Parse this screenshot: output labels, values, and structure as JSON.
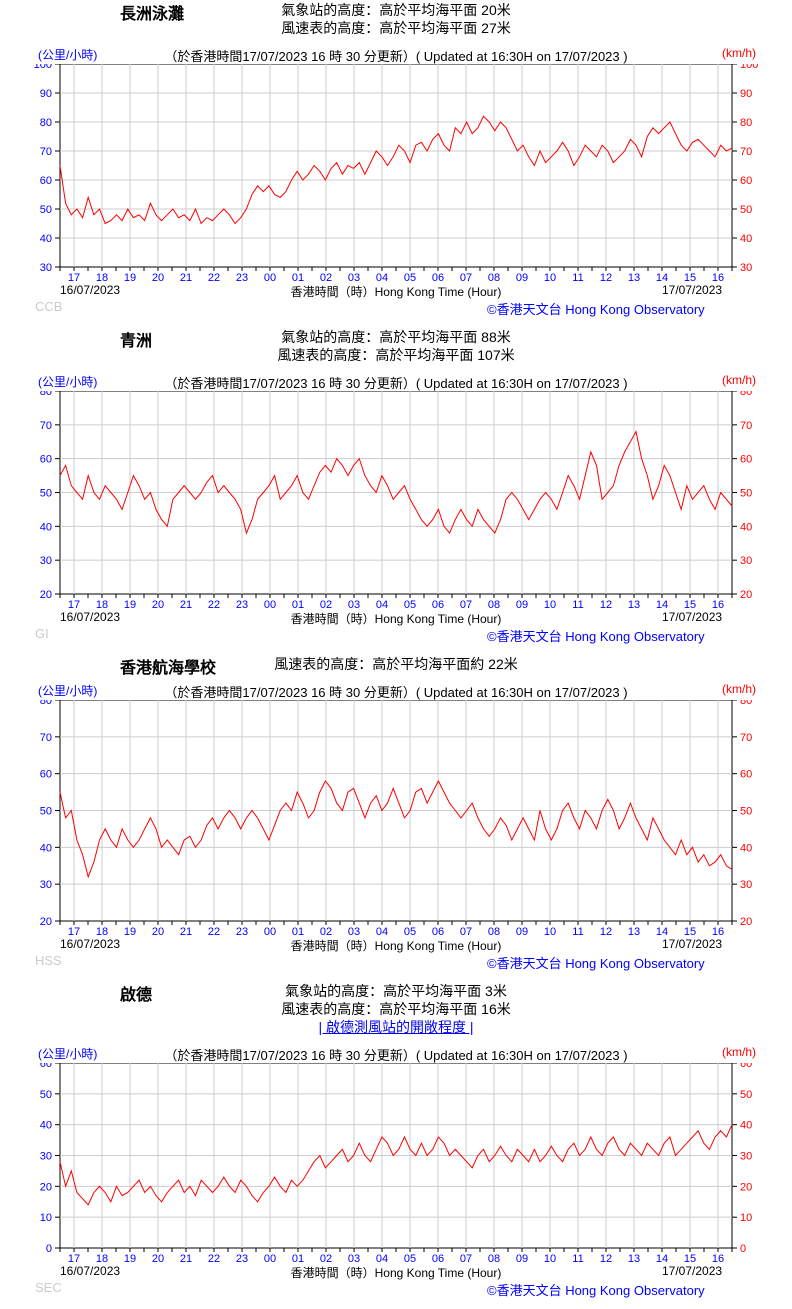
{
  "global": {
    "update_text": "（於香港時間17/07/2023 16 時 30 分更新）( Updated at 16:30H on 17/07/2023 )",
    "xaxis_title": "香港時間（時）Hong Kong Time (Hour)",
    "xaxis_ticks": [
      "17",
      "18",
      "19",
      "20",
      "21",
      "22",
      "23",
      "00",
      "01",
      "02",
      "03",
      "04",
      "05",
      "06",
      "07",
      "08",
      "09",
      "10",
      "11",
      "12",
      "13",
      "14",
      "15",
      "16"
    ],
    "date_start": "16/07/2023",
    "date_end": "17/07/2023",
    "copyright": "©香港天文台 Hong Kong Observatory",
    "unit_left": "(公里/小時)",
    "unit_right": "(km/h)",
    "line_color": "#ff0000",
    "grid_color": "#cccccc",
    "axis_color": "#000000",
    "xtick_color": "#0000ff",
    "left_tick_color": "#0000ff",
    "right_tick_color": "#ff0000",
    "title_fontsize": 16,
    "subtitle_fontsize": 14,
    "update_fontsize": 13,
    "axislabel_fontsize": 12,
    "tick_fontsize": 11,
    "copyright_fontsize": 13,
    "code_fontsize": 13
  },
  "charts": [
    {
      "station_name": "長洲泳灘",
      "station_code": "CCB",
      "subtitles": [
        "氣象站的高度：高於平均海平面 20米",
        "風速表的高度：高於平均海平面 27米"
      ],
      "ylim": [
        30,
        100
      ],
      "ytick_step": 10,
      "series": [
        65,
        52,
        48,
        50,
        47,
        54,
        48,
        50,
        45,
        46,
        48,
        46,
        50,
        47,
        48,
        46,
        52,
        48,
        46,
        48,
        50,
        47,
        48,
        46,
        50,
        45,
        47,
        46,
        48,
        50,
        48,
        45,
        47,
        50,
        55,
        58,
        56,
        58,
        55,
        54,
        56,
        60,
        63,
        60,
        62,
        65,
        63,
        60,
        64,
        66,
        62,
        65,
        64,
        66,
        62,
        66,
        70,
        68,
        65,
        68,
        72,
        70,
        66,
        72,
        73,
        70,
        74,
        76,
        72,
        70,
        78,
        76,
        80,
        76,
        78,
        82,
        80,
        77,
        80,
        78,
        74,
        70,
        72,
        68,
        65,
        70,
        66,
        68,
        70,
        73,
        70,
        65,
        68,
        72,
        70,
        68,
        72,
        70,
        66,
        68,
        70,
        74,
        72,
        68,
        75,
        78,
        76,
        78,
        80,
        76,
        72,
        70,
        73,
        74,
        72,
        70,
        68,
        72,
        70,
        71
      ]
    },
    {
      "station_name": "青洲",
      "station_code": "GI",
      "subtitles": [
        "氣象站的高度：高於平均海平面 88米",
        "風速表的高度：高於平均海平面 107米"
      ],
      "ylim": [
        20,
        80
      ],
      "ytick_step": 10,
      "series": [
        55,
        58,
        52,
        50,
        48,
        55,
        50,
        48,
        52,
        50,
        48,
        45,
        50,
        55,
        52,
        48,
        50,
        45,
        42,
        40,
        48,
        50,
        52,
        50,
        48,
        50,
        53,
        55,
        50,
        52,
        50,
        48,
        45,
        38,
        42,
        48,
        50,
        52,
        55,
        48,
        50,
        52,
        55,
        50,
        48,
        52,
        56,
        58,
        56,
        60,
        58,
        55,
        58,
        60,
        55,
        52,
        50,
        55,
        52,
        48,
        50,
        52,
        48,
        45,
        42,
        40,
        42,
        45,
        40,
        38,
        42,
        45,
        42,
        40,
        45,
        42,
        40,
        38,
        42,
        48,
        50,
        48,
        45,
        42,
        45,
        48,
        50,
        48,
        45,
        50,
        55,
        52,
        48,
        55,
        62,
        58,
        48,
        50,
        52,
        58,
        62,
        65,
        68,
        60,
        55,
        48,
        52,
        58,
        55,
        50,
        45,
        52,
        48,
        50,
        52,
        48,
        45,
        50,
        48,
        46
      ]
    },
    {
      "station_name": "香港航海學校",
      "station_code": "HSS",
      "subtitles": [
        "風速表的高度：高於平均海平面約 22米"
      ],
      "ylim": [
        20,
        80
      ],
      "ytick_step": 10,
      "series": [
        55,
        48,
        50,
        42,
        38,
        32,
        36,
        42,
        45,
        42,
        40,
        45,
        42,
        40,
        42,
        45,
        48,
        45,
        40,
        42,
        40,
        38,
        42,
        43,
        40,
        42,
        46,
        48,
        45,
        48,
        50,
        48,
        45,
        48,
        50,
        48,
        45,
        42,
        46,
        50,
        52,
        50,
        55,
        52,
        48,
        50,
        55,
        58,
        56,
        52,
        50,
        55,
        56,
        52,
        48,
        52,
        54,
        50,
        52,
        56,
        52,
        48,
        50,
        55,
        56,
        52,
        55,
        58,
        55,
        52,
        50,
        48,
        50,
        52,
        48,
        45,
        43,
        45,
        48,
        46,
        42,
        45,
        48,
        45,
        42,
        50,
        45,
        42,
        45,
        50,
        52,
        48,
        45,
        50,
        48,
        45,
        50,
        53,
        50,
        45,
        48,
        52,
        48,
        45,
        42,
        48,
        45,
        42,
        40,
        38,
        42,
        38,
        40,
        36,
        38,
        35,
        36,
        38,
        35,
        34
      ]
    },
    {
      "station_name": "啟德",
      "station_code": "SEC",
      "subtitles": [
        "氣象站的高度：高於平均海平面 3米",
        "風速表的高度：高於平均海平面 16米"
      ],
      "link_text": "|   啟德測風站的開敞程度   |",
      "ylim": [
        0,
        60
      ],
      "ytick_step": 10,
      "series": [
        28,
        20,
        25,
        18,
        16,
        14,
        18,
        20,
        18,
        15,
        20,
        17,
        18,
        20,
        22,
        18,
        20,
        17,
        15,
        18,
        20,
        22,
        18,
        20,
        17,
        22,
        20,
        18,
        20,
        23,
        20,
        18,
        22,
        20,
        17,
        15,
        18,
        20,
        23,
        20,
        18,
        22,
        20,
        22,
        25,
        28,
        30,
        26,
        28,
        30,
        32,
        28,
        30,
        34,
        30,
        28,
        32,
        36,
        34,
        30,
        32,
        36,
        32,
        30,
        34,
        30,
        32,
        36,
        34,
        30,
        32,
        30,
        28,
        26,
        30,
        32,
        28,
        30,
        33,
        30,
        28,
        32,
        30,
        28,
        32,
        28,
        30,
        33,
        30,
        28,
        32,
        34,
        30,
        32,
        36,
        32,
        30,
        34,
        36,
        32,
        30,
        34,
        32,
        30,
        34,
        32,
        30,
        34,
        36,
        30,
        32,
        34,
        36,
        38,
        34,
        32,
        36,
        38,
        36,
        40
      ]
    }
  ]
}
